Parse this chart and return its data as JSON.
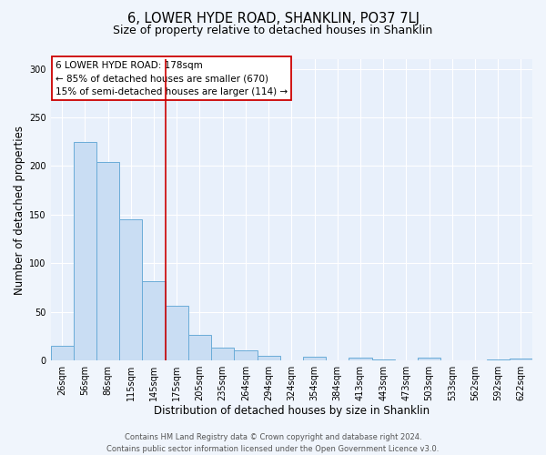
{
  "title": "6, LOWER HYDE ROAD, SHANKLIN, PO37 7LJ",
  "subtitle": "Size of property relative to detached houses in Shanklin",
  "xlabel": "Distribution of detached houses by size in Shanklin",
  "ylabel": "Number of detached properties",
  "bar_labels": [
    "26sqm",
    "56sqm",
    "86sqm",
    "115sqm",
    "145sqm",
    "175sqm",
    "205sqm",
    "235sqm",
    "264sqm",
    "294sqm",
    "324sqm",
    "354sqm",
    "384sqm",
    "413sqm",
    "443sqm",
    "473sqm",
    "503sqm",
    "533sqm",
    "562sqm",
    "592sqm",
    "622sqm"
  ],
  "bar_heights": [
    15,
    225,
    204,
    145,
    82,
    56,
    26,
    13,
    10,
    5,
    0,
    4,
    0,
    3,
    1,
    0,
    3,
    0,
    0,
    1,
    2
  ],
  "bar_color": "#c9ddf3",
  "bar_edge_color": "#6aacd8",
  "vline_x_idx": 5,
  "vline_color": "#cc0000",
  "annotation_title": "6 LOWER HYDE ROAD: 178sqm",
  "annotation_line1": "← 85% of detached houses are smaller (670)",
  "annotation_line2": "15% of semi-detached houses are larger (114) →",
  "annotation_box_color": "#ffffff",
  "annotation_box_edge": "#cc0000",
  "ylim": [
    0,
    310
  ],
  "yticks": [
    0,
    50,
    100,
    150,
    200,
    250,
    300
  ],
  "footer1": "Contains HM Land Registry data © Crown copyright and database right 2024.",
  "footer2": "Contains public sector information licensed under the Open Government Licence v3.0.",
  "bg_color": "#f0f5fc",
  "plot_bg_color": "#e8f0fb",
  "grid_color": "#ffffff",
  "title_fontsize": 10.5,
  "subtitle_fontsize": 9,
  "axis_label_fontsize": 8.5,
  "tick_fontsize": 7,
  "annotation_fontsize": 7.5,
  "footer_fontsize": 6
}
